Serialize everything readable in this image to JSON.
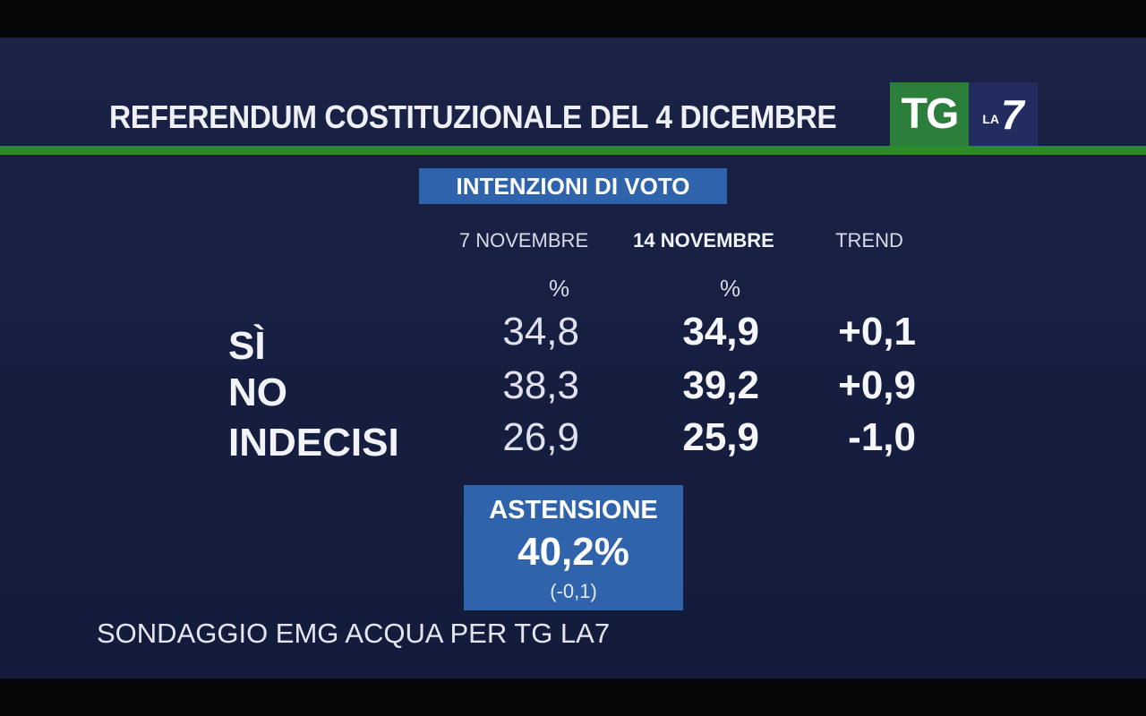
{
  "title": "REFERENDUM COSTITUZIONALE DEL 4 DICEMBRE",
  "logo": {
    "tg": "TG",
    "la": "LA",
    "seven": "7"
  },
  "badge": "INTENZIONI DI VOTO",
  "columns": {
    "prev": "7 NOVEMBRE",
    "curr": "14 NOVEMBRE",
    "trend": "TREND",
    "unit": "%"
  },
  "rows": [
    {
      "label": "SÌ",
      "prev": "34,8",
      "curr": "34,9",
      "trend": "+0,1"
    },
    {
      "label": "NO",
      "prev": "38,3",
      "curr": "39,2",
      "trend": "+0,9"
    },
    {
      "label": "INDECISI",
      "prev": "26,9",
      "curr": "25,9",
      "trend": "-1,0"
    }
  ],
  "abstention": {
    "label": "ASTENSIONE",
    "value": "40,2%",
    "change": "(-0,1)"
  },
  "source": "SONDAGGIO EMG ACQUA PER TG LA7",
  "colors": {
    "accent_blue": "#2f64ad",
    "green": "#2f8a2e",
    "background": "#1a2246"
  }
}
